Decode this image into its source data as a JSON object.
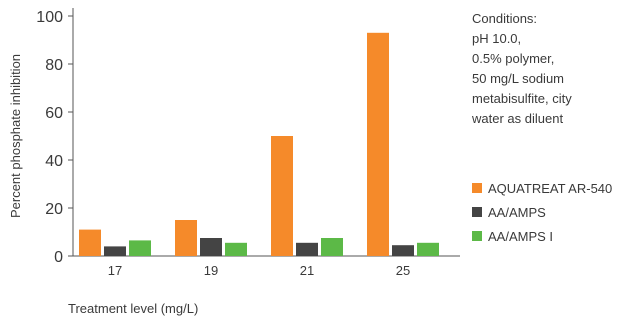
{
  "chart_data": {
    "type": "bar",
    "categories": [
      "17",
      "19",
      "21",
      "25"
    ],
    "series": [
      {
        "name": "AQUATREAT AR-540",
        "values": [
          11,
          15,
          50,
          93
        ]
      },
      {
        "name": "AA/AMPS",
        "values": [
          4,
          7.5,
          5.5,
          4.5
        ]
      },
      {
        "name": "AA/AMPS I",
        "values": [
          6.5,
          5.5,
          7.5,
          5.5
        ]
      }
    ],
    "title": "",
    "xlabel": "Treatment level (mg/L)",
    "ylabel": "Percent phosphate inhibition",
    "ylim": [
      0,
      100
    ],
    "yticks": [
      0,
      20,
      40,
      60,
      80,
      100
    ],
    "grid": false,
    "legend_position": "right"
  },
  "colors": {
    "series": [
      "#f58a2a",
      "#444444",
      "#5cb947"
    ],
    "axis": "#555555"
  },
  "note": {
    "lines": [
      "Conditions:",
      "pH 10.0,",
      "0.5% polymer,",
      "50 mg/L sodium",
      "metabisulfite, city",
      "water as diluent"
    ]
  }
}
